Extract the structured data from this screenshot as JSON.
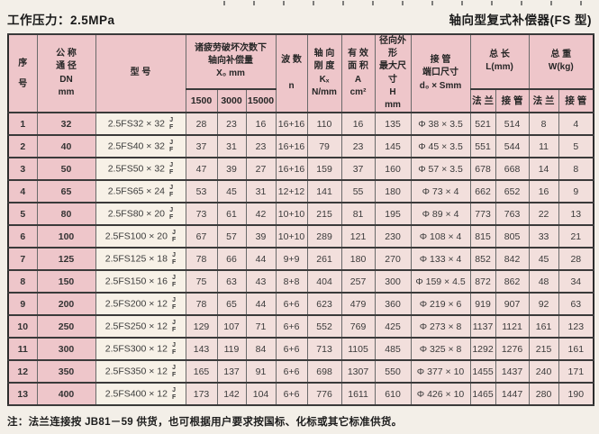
{
  "page": {
    "title_left": "工作压力：2.5MPa",
    "title_right": "轴向型复式补偿器(FS 型)",
    "footnote": "注：法兰连接按 JB81－59 供货，也可根据用户要求按国标、化标或其它标准供货。"
  },
  "table": {
    "headers": {
      "seq": "序\n号",
      "dn": "公 称\n通 径\nDN\nmm",
      "model": "型  号",
      "x0_group": "诸疲劳破坏次数下\n轴向补偿量\nX₀    mm",
      "x0_1500": "1500",
      "x0_3000": "3000",
      "x0_15000": "15000",
      "n": "波 数\n\nn",
      "k": "轴 向\n刚 度\nKₓ\nN/mm",
      "a": "有 效\n面 积\nA\ncm²",
      "h": "径向外形\n最大尺寸\nH\nmm",
      "d0": "接  管\n端口尺寸\nd₀ × Smm",
      "l_group": "总  长\nL(mm)",
      "w_group": "总  重\nW(kg)",
      "flange": "法 兰",
      "pipe": "接 管"
    },
    "rows": [
      {
        "seq": "1",
        "dn": "32",
        "model": "2.5FS32 × 32",
        "jf_top": "J",
        "jf_bottom": "F",
        "x1500": "28",
        "x3000": "23",
        "x15000": "16",
        "n": "16+16",
        "k": "110",
        "a": "16",
        "h": "135",
        "d0": "Φ 38 × 3.5",
        "l_flange": "521",
        "l_pipe": "514",
        "w_flange": "8",
        "w_pipe": "4"
      },
      {
        "seq": "2",
        "dn": "40",
        "model": "2.5FS40 × 32",
        "jf_top": "J",
        "jf_bottom": "F",
        "x1500": "37",
        "x3000": "31",
        "x15000": "23",
        "n": "16+16",
        "k": "79",
        "a": "23",
        "h": "145",
        "d0": "Φ 45 × 3.5",
        "l_flange": "551",
        "l_pipe": "544",
        "w_flange": "11",
        "w_pipe": "5"
      },
      {
        "seq": "3",
        "dn": "50",
        "model": "2.5FS50 × 32",
        "jf_top": "J",
        "jf_bottom": "F",
        "x1500": "47",
        "x3000": "39",
        "x15000": "27",
        "n": "16+16",
        "k": "159",
        "a": "37",
        "h": "160",
        "d0": "Φ 57 × 3.5",
        "l_flange": "678",
        "l_pipe": "668",
        "w_flange": "14",
        "w_pipe": "8"
      },
      {
        "seq": "4",
        "dn": "65",
        "model": "2.5FS65 × 24",
        "jf_top": "J",
        "jf_bottom": "F",
        "x1500": "53",
        "x3000": "45",
        "x15000": "31",
        "n": "12+12",
        "k": "141",
        "a": "55",
        "h": "180",
        "d0": "Φ 73 × 4",
        "l_flange": "662",
        "l_pipe": "652",
        "w_flange": "16",
        "w_pipe": "9"
      },
      {
        "seq": "5",
        "dn": "80",
        "model": "2.5FS80 × 20",
        "jf_top": "J",
        "jf_bottom": "F",
        "x1500": "73",
        "x3000": "61",
        "x15000": "42",
        "n": "10+10",
        "k": "215",
        "a": "81",
        "h": "195",
        "d0": "Φ 89 × 4",
        "l_flange": "773",
        "l_pipe": "763",
        "w_flange": "22",
        "w_pipe": "13"
      },
      {
        "seq": "6",
        "dn": "100",
        "model": "2.5FS100 × 20",
        "jf_top": "J",
        "jf_bottom": "F",
        "x1500": "67",
        "x3000": "57",
        "x15000": "39",
        "n": "10+10",
        "k": "289",
        "a": "121",
        "h": "230",
        "d0": "Φ 108 × 4",
        "l_flange": "815",
        "l_pipe": "805",
        "w_flange": "33",
        "w_pipe": "21"
      },
      {
        "seq": "7",
        "dn": "125",
        "model": "2.5FS125 × 18",
        "jf_top": "J",
        "jf_bottom": "F",
        "x1500": "78",
        "x3000": "66",
        "x15000": "44",
        "n": "9+9",
        "k": "261",
        "a": "180",
        "h": "270",
        "d0": "Φ 133 × 4",
        "l_flange": "852",
        "l_pipe": "842",
        "w_flange": "45",
        "w_pipe": "28"
      },
      {
        "seq": "8",
        "dn": "150",
        "model": "2.5FS150 × 16",
        "jf_top": "J",
        "jf_bottom": "F",
        "x1500": "75",
        "x3000": "63",
        "x15000": "43",
        "n": "8+8",
        "k": "404",
        "a": "257",
        "h": "300",
        "d0": "Φ 159 × 4.5",
        "l_flange": "872",
        "l_pipe": "862",
        "w_flange": "48",
        "w_pipe": "34"
      },
      {
        "seq": "9",
        "dn": "200",
        "model": "2.5FS200 × 12",
        "jf_top": "J",
        "jf_bottom": "F",
        "x1500": "78",
        "x3000": "65",
        "x15000": "44",
        "n": "6+6",
        "k": "623",
        "a": "479",
        "h": "360",
        "d0": "Φ 219 × 6",
        "l_flange": "919",
        "l_pipe": "907",
        "w_flange": "92",
        "w_pipe": "63"
      },
      {
        "seq": "10",
        "dn": "250",
        "model": "2.5FS250 × 12",
        "jf_top": "J",
        "jf_bottom": "F",
        "x1500": "129",
        "x3000": "107",
        "x15000": "71",
        "n": "6+6",
        "k": "552",
        "a": "769",
        "h": "425",
        "d0": "Φ 273 × 8",
        "l_flange": "1137",
        "l_pipe": "1121",
        "w_flange": "161",
        "w_pipe": "123"
      },
      {
        "seq": "11",
        "dn": "300",
        "model": "2.5FS300 × 12",
        "jf_top": "J",
        "jf_bottom": "F",
        "x1500": "143",
        "x3000": "119",
        "x15000": "84",
        "n": "6+6",
        "k": "713",
        "a": "1105",
        "h": "485",
        "d0": "Φ 325 × 8",
        "l_flange": "1292",
        "l_pipe": "1276",
        "w_flange": "215",
        "w_pipe": "161"
      },
      {
        "seq": "12",
        "dn": "350",
        "model": "2.5FS350 × 12",
        "jf_top": "J",
        "jf_bottom": "F",
        "x1500": "165",
        "x3000": "137",
        "x15000": "91",
        "n": "6+6",
        "k": "698",
        "a": "1307",
        "h": "550",
        "d0": "Φ 377 × 10",
        "l_flange": "1455",
        "l_pipe": "1437",
        "w_flange": "240",
        "w_pipe": "171"
      },
      {
        "seq": "13",
        "dn": "400",
        "model": "2.5FS400 × 12",
        "jf_top": "J",
        "jf_bottom": "F",
        "x1500": "173",
        "x3000": "142",
        "x15000": "104",
        "n": "6+6",
        "k": "776",
        "a": "1611",
        "h": "610",
        "d0": "Φ 426 × 10",
        "l_flange": "1465",
        "l_pipe": "1447",
        "w_flange": "280",
        "w_pipe": "190"
      }
    ]
  }
}
